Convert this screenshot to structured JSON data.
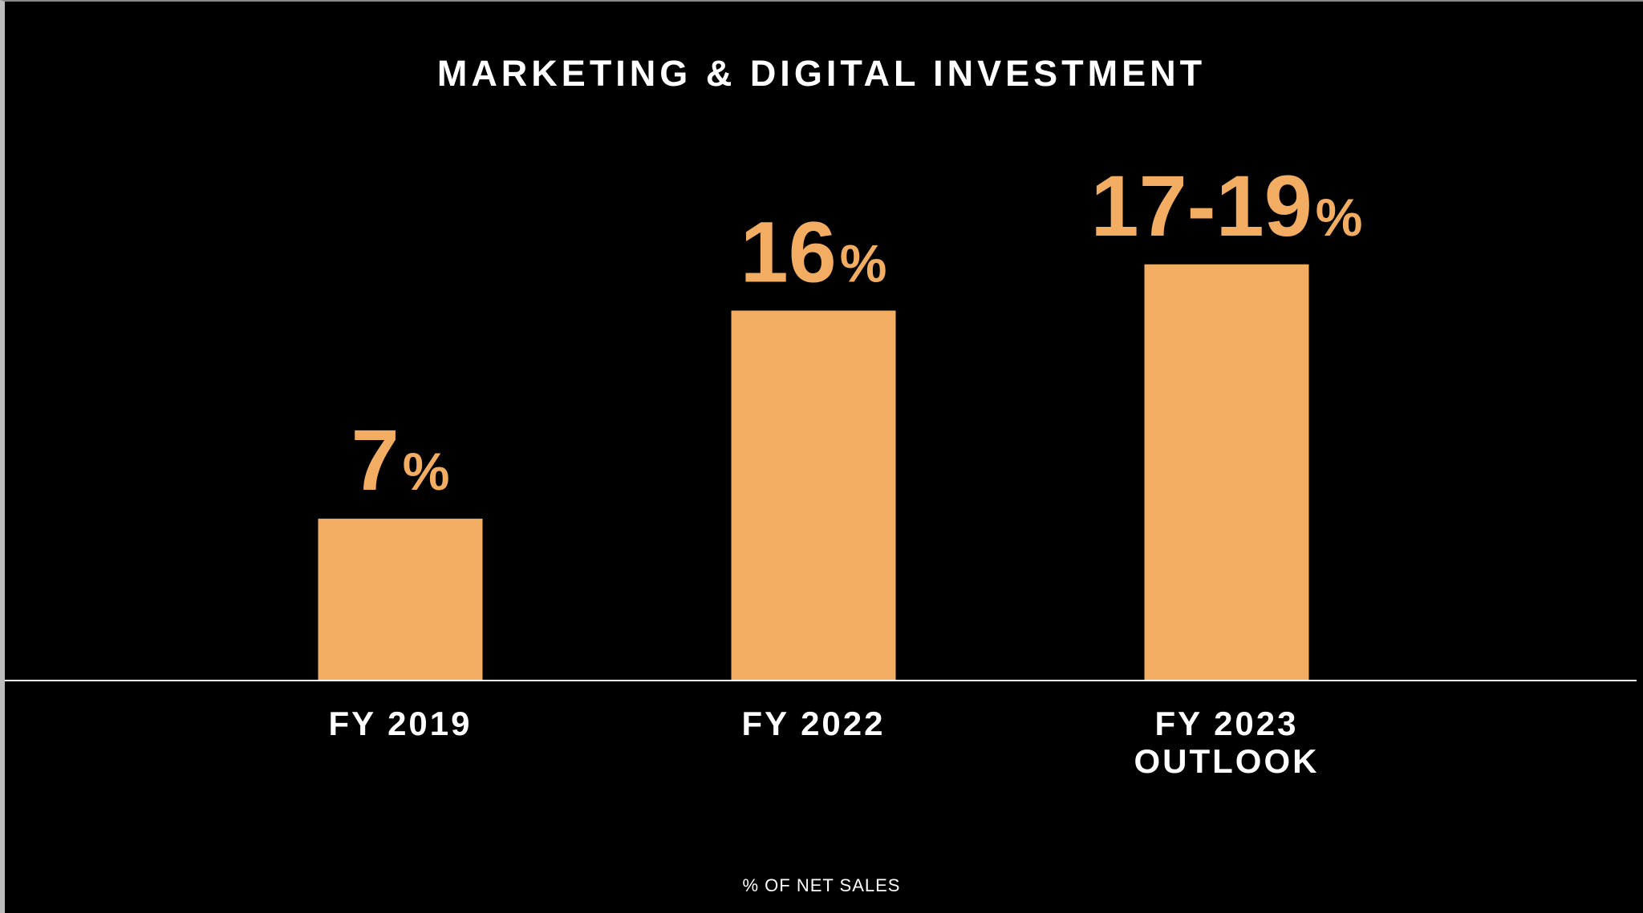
{
  "chart_data": {
    "type": "bar",
    "title": "MARKETING & DIGITAL INVESTMENT",
    "categories": [
      "FY 2019",
      "FY 2022",
      "FY 2023 OUTLOOK"
    ],
    "category_lines": [
      [
        "FY 2019"
      ],
      [
        "FY 2022"
      ],
      [
        "FY 2023",
        "OUTLOOK"
      ]
    ],
    "values": [
      7,
      16,
      18
    ],
    "value_ranges": [
      null,
      null,
      [
        17,
        19
      ]
    ],
    "data_labels": [
      {
        "number": "7",
        "suffix": "%"
      },
      {
        "number": "16",
        "suffix": "%"
      },
      {
        "number": "17-19",
        "suffix": "%"
      }
    ],
    "xlabel": "% OF NET SALES",
    "ylabel": "",
    "ylim": [
      0,
      19.24
    ],
    "grid": false,
    "legend": "none",
    "colors": {
      "bar": "#F2AD63",
      "value_label": "#F2AD63",
      "axis_line": "#FFFFFF",
      "text": "#FFFFFF",
      "background": "#000000"
    }
  }
}
